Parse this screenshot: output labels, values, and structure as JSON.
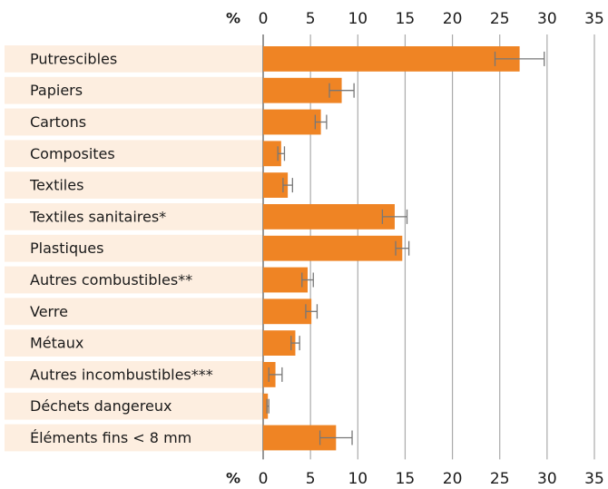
{
  "chart_data": {
    "type": "bar",
    "orientation": "horizontal",
    "x_label": "%",
    "categories": [
      "Putrescibles",
      "Papiers",
      "Cartons",
      "Composites",
      "Textiles",
      "Textiles sanitaires*",
      "Plastiques",
      "Autres combustibles**",
      "Verre",
      "Métaux",
      "Autres incombustibles***",
      "Déchets dangereux",
      "Éléments fins < 8 mm"
    ],
    "values": [
      27.1,
      8.3,
      6.1,
      1.9,
      2.6,
      13.9,
      14.7,
      4.7,
      5.1,
      3.4,
      1.3,
      0.5,
      7.7
    ],
    "errors": [
      2.6,
      1.3,
      0.6,
      0.35,
      0.5,
      1.3,
      0.7,
      0.6,
      0.6,
      0.45,
      0.7,
      0.1,
      1.7
    ],
    "color": "#ef8424",
    "xlim": [
      0,
      35
    ],
    "xticks": [
      0,
      5,
      10,
      15,
      20,
      25,
      30,
      35
    ],
    "grid": true
  }
}
